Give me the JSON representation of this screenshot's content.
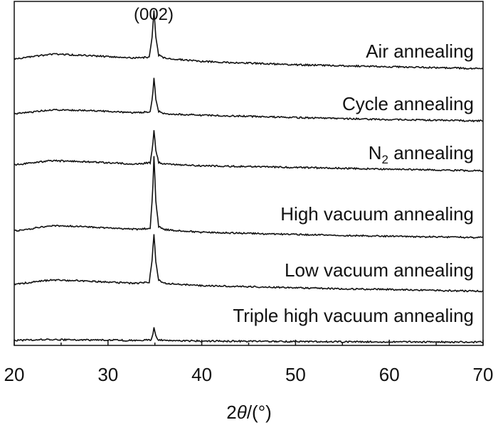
{
  "chart_data": {
    "type": "line",
    "xlabel_prefix": "2",
    "xlabel_theta": "θ",
    "xlabel_suffix": "/(°)",
    "xlim": [
      20,
      70
    ],
    "x_ticks": [
      "20",
      "30",
      "40",
      "50",
      "60",
      "70"
    ],
    "y_ticks_shown": false,
    "peak_annotation": "(002)",
    "peak_position": 34.9,
    "series": [
      {
        "label": "Air annealing",
        "baseline": [
          [
            20,
            0.0
          ],
          [
            22,
            0.05
          ],
          [
            24,
            0.1
          ],
          [
            27,
            0.08
          ],
          [
            30,
            0.05
          ],
          [
            33,
            0.02
          ],
          [
            34.4,
            0.04
          ],
          [
            34.7,
            0.45
          ],
          [
            34.9,
            1.0
          ],
          [
            35.1,
            0.45
          ],
          [
            35.4,
            0.08
          ],
          [
            36,
            0.02
          ],
          [
            40,
            -0.05
          ],
          [
            50,
            -0.12
          ],
          [
            60,
            -0.16
          ],
          [
            70,
            -0.2
          ]
        ]
      },
      {
        "label": "Cycle annealing",
        "baseline": [
          [
            20,
            0.0
          ],
          [
            22,
            0.04
          ],
          [
            24,
            0.08
          ],
          [
            27,
            0.07
          ],
          [
            30,
            0.05
          ],
          [
            33,
            0.02
          ],
          [
            34.5,
            0.04
          ],
          [
            34.75,
            0.35
          ],
          [
            34.9,
            0.75
          ],
          [
            35.1,
            0.3
          ],
          [
            35.4,
            0.05
          ],
          [
            36,
            0.0
          ],
          [
            40,
            -0.03
          ],
          [
            50,
            -0.08
          ],
          [
            60,
            -0.12
          ],
          [
            70,
            -0.15
          ]
        ]
      },
      {
        "label": "N",
        "label_sub": "2",
        "label_rest": " annealing",
        "baseline": [
          [
            20,
            0.0
          ],
          [
            22,
            0.05
          ],
          [
            24,
            0.1
          ],
          [
            27,
            0.08
          ],
          [
            30,
            0.05
          ],
          [
            33,
            0.02
          ],
          [
            34.5,
            0.05
          ],
          [
            34.75,
            0.4
          ],
          [
            34.9,
            0.8
          ],
          [
            35.1,
            0.35
          ],
          [
            35.4,
            0.06
          ],
          [
            36,
            0.02
          ],
          [
            40,
            -0.02
          ],
          [
            50,
            -0.06
          ],
          [
            60,
            -0.1
          ],
          [
            70,
            -0.14
          ]
        ]
      },
      {
        "label": "High vacuum annealing",
        "baseline": [
          [
            20,
            0.0
          ],
          [
            22,
            0.06
          ],
          [
            24,
            0.12
          ],
          [
            27,
            0.1
          ],
          [
            30,
            0.07
          ],
          [
            33,
            0.04
          ],
          [
            34.5,
            0.06
          ],
          [
            34.75,
            0.8
          ],
          [
            34.9,
            1.7
          ],
          [
            35.1,
            0.7
          ],
          [
            35.4,
            0.1
          ],
          [
            36,
            0.03
          ],
          [
            40,
            -0.03
          ],
          [
            50,
            -0.08
          ],
          [
            60,
            -0.12
          ],
          [
            70,
            -0.15
          ]
        ]
      },
      {
        "label": "Low vacuum annealing",
        "baseline": [
          [
            20,
            0.0
          ],
          [
            22,
            0.05
          ],
          [
            24,
            0.1
          ],
          [
            27,
            0.08
          ],
          [
            30,
            0.05
          ],
          [
            33,
            0.02
          ],
          [
            34.4,
            0.05
          ],
          [
            34.7,
            0.55
          ],
          [
            34.9,
            1.15
          ],
          [
            35.1,
            0.5
          ],
          [
            35.4,
            0.1
          ],
          [
            36,
            0.02
          ],
          [
            40,
            -0.03
          ],
          [
            50,
            -0.08
          ],
          [
            60,
            -0.12
          ],
          [
            70,
            -0.16
          ]
        ]
      },
      {
        "label": "Triple high vacuum annealing",
        "baseline": [
          [
            20,
            0.0
          ],
          [
            22,
            0.02
          ],
          [
            24,
            0.03
          ],
          [
            27,
            0.02
          ],
          [
            30,
            0.01
          ],
          [
            33,
            0.0
          ],
          [
            34.6,
            0.02
          ],
          [
            34.8,
            0.25
          ],
          [
            34.9,
            0.45
          ],
          [
            35.05,
            0.2
          ],
          [
            35.3,
            0.02
          ],
          [
            36,
            0.0
          ],
          [
            40,
            -0.02
          ],
          [
            50,
            -0.04
          ],
          [
            60,
            -0.05
          ],
          [
            70,
            -0.06
          ]
        ]
      }
    ]
  }
}
